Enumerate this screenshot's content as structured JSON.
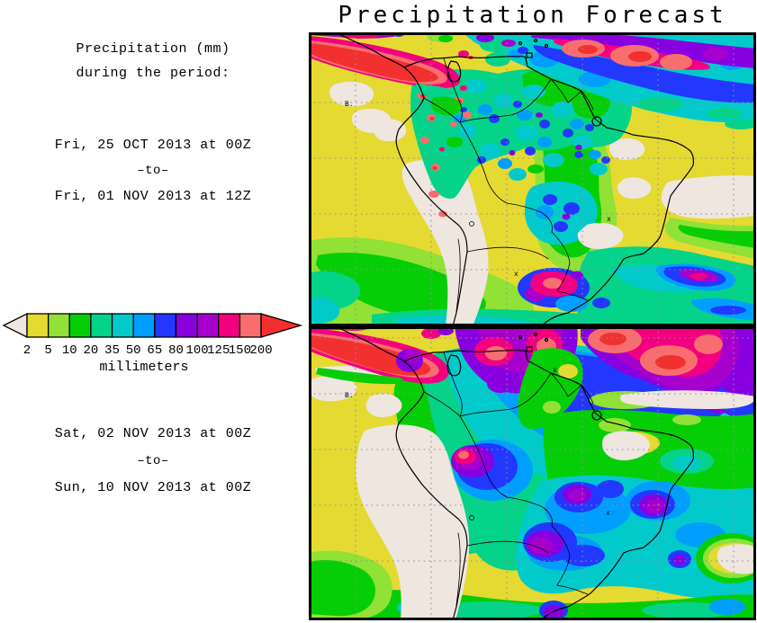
{
  "title": "Precipitation Forecast",
  "sidebar": {
    "heading": {
      "line1": "Precipitation (mm)",
      "line2": "during the period:"
    },
    "period1": {
      "start": "Fri, 25 OCT 2013 at 00Z",
      "separator": "–to–",
      "end": "Fri, 01 NOV 2013 at 12Z"
    },
    "period2": {
      "start": "Sat, 02 NOV 2013 at 00Z",
      "separator": "–to–",
      "end": "Sun, 10 NOV 2013 at 00Z"
    }
  },
  "colorbar": {
    "unit_label": "millimeters",
    "ticks": [
      "2",
      "5",
      "10",
      "20",
      "35",
      "50",
      "65",
      "80",
      "100",
      "125",
      "150",
      "200"
    ],
    "segment_colors": [
      "#E5DA32",
      "#92E136",
      "#06CE06",
      "#04D389",
      "#03CACA",
      "#009FFF",
      "#2238FF",
      "#8800E0",
      "#A800CC",
      "#F20080",
      "#F86E6E"
    ],
    "under_arrow_color": "#EEE6DF",
    "over_arrow_color": "#F23030"
  },
  "palette": {
    "under": "#EEE6DF",
    "mm2": "#E5DA32",
    "mm5": "#92E136",
    "mm10": "#06CE06",
    "mm20": "#04D389",
    "mm35": "#03CACA",
    "mm50": "#009FFF",
    "mm65": "#2238FF",
    "mm80": "#8800E0",
    "mm100": "#A800CC",
    "mm125": "#F20080",
    "mm150": "#F86E6E",
    "over": "#F23030",
    "coastline": "#000000",
    "grid": "#8F8F9F"
  },
  "maps": {
    "marker_label": "B.",
    "station_mark": "x",
    "panel1": {
      "name": "precip-map-25oct-01nov"
    },
    "panel2": {
      "name": "precip-map-02nov-10nov"
    }
  }
}
